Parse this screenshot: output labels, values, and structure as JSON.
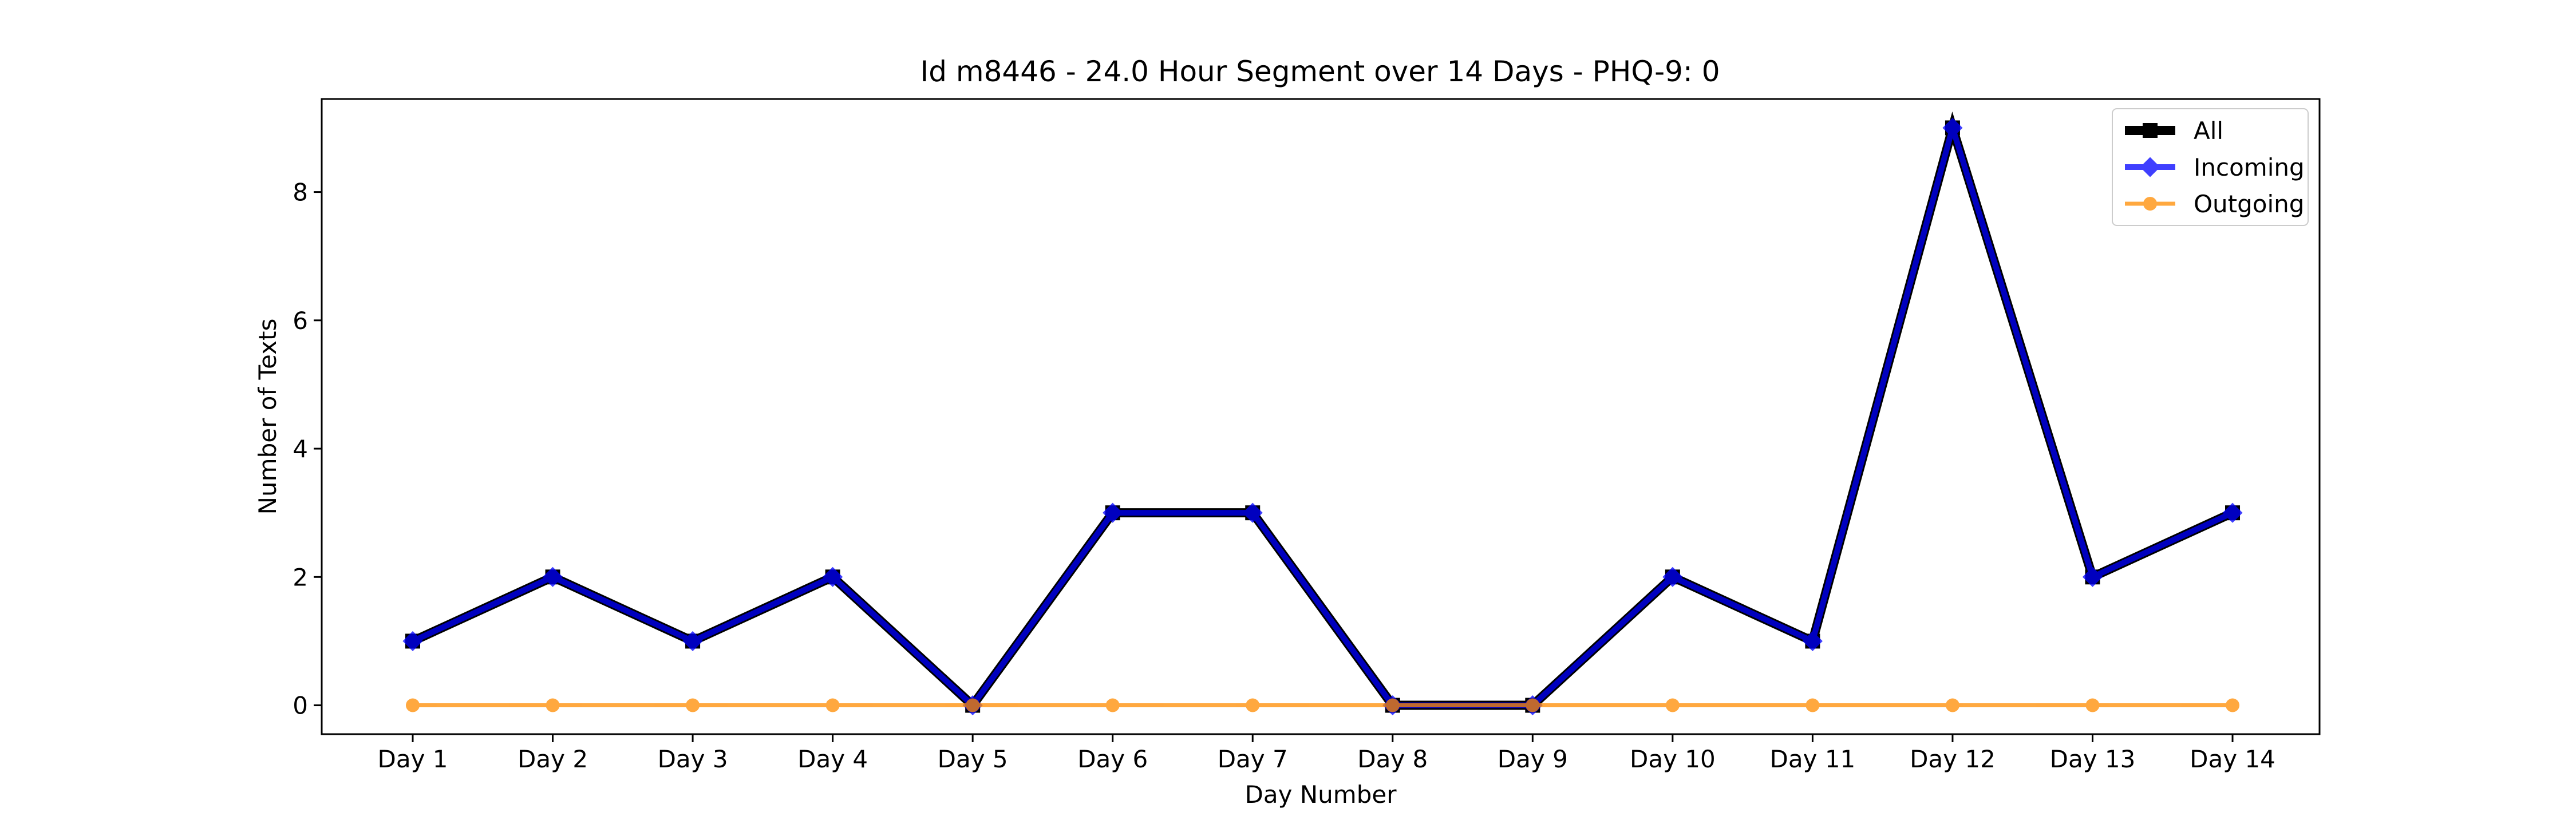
{
  "chart_data": {
    "type": "line",
    "title": "Id m8446 - 24.0 Hour Segment over 14 Days - PHQ-9: 0",
    "xlabel": "Day Number",
    "ylabel": "Number of Texts",
    "categories": [
      "Day 1",
      "Day 2",
      "Day 3",
      "Day 4",
      "Day 5",
      "Day 6",
      "Day 7",
      "Day 8",
      "Day 9",
      "Day 10",
      "Day 11",
      "Day 12",
      "Day 13",
      "Day 14"
    ],
    "ylim": [
      -0.45,
      9.45
    ],
    "yticks": [
      0,
      2,
      4,
      6,
      8
    ],
    "grid": false,
    "legend_position": "top-right",
    "series": [
      {
        "name": "All",
        "color": "#000000",
        "marker": "square",
        "values": [
          1,
          2,
          1,
          2,
          0,
          3,
          3,
          0,
          0,
          2,
          1,
          9,
          2,
          3
        ]
      },
      {
        "name": "Incoming",
        "color": "#0000ff",
        "marker": "diamond",
        "values": [
          1,
          2,
          1,
          2,
          0,
          3,
          3,
          0,
          0,
          2,
          1,
          9,
          2,
          3
        ]
      },
      {
        "name": "Outgoing",
        "color": "#ff8c00",
        "marker": "circle",
        "values": [
          0,
          0,
          0,
          0,
          0,
          0,
          0,
          0,
          0,
          0,
          0,
          0,
          0,
          0
        ]
      }
    ]
  }
}
